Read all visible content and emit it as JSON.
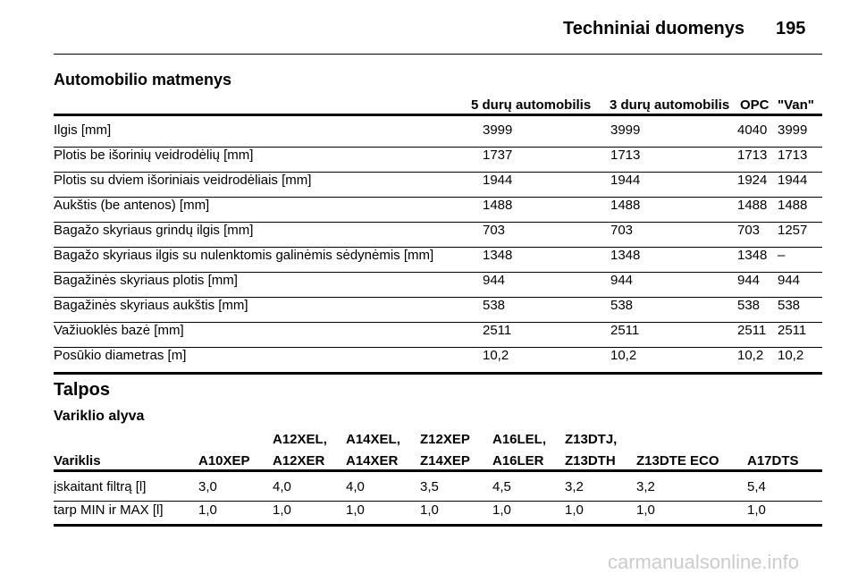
{
  "header": {
    "title": "Techniniai duomenys",
    "page": "195"
  },
  "dimensions": {
    "title": "Automobilio matmenys",
    "columns": [
      "5 durų automobilis",
      "3 durų automobilis",
      "OPC",
      "\"Van\""
    ],
    "rows": [
      [
        "Ilgis [mm]",
        "3999",
        "3999",
        "4040",
        "3999"
      ],
      [
        "Plotis be išorinių veidrodėlių [mm]",
        "1737",
        "1713",
        "1713",
        "1713"
      ],
      [
        "Plotis su dviem išoriniais veidrodėliais [mm]",
        "1944",
        "1944",
        "1924",
        "1944"
      ],
      [
        "Aukštis (be antenos) [mm]",
        "1488",
        "1488",
        "1488",
        "1488"
      ],
      [
        "Bagažo skyriaus grindų ilgis [mm]",
        "703",
        "703",
        "703",
        "1257"
      ],
      [
        "Bagažo skyriaus ilgis su nulenktomis galinėmis sėdynėmis [mm]",
        "1348",
        "1348",
        "1348",
        "–"
      ],
      [
        "Bagažinės skyriaus plotis [mm]",
        "944",
        "944",
        "944",
        "944"
      ],
      [
        "Bagažinės skyriaus aukštis [mm]",
        "538",
        "538",
        "538",
        "538"
      ],
      [
        "Važiuoklės bazė [mm]",
        "2511",
        "2511",
        "2511",
        "2511"
      ],
      [
        "Posūkio diametras [m]",
        "10,2",
        "10,2",
        "10,2",
        "10,2"
      ]
    ]
  },
  "capacities": {
    "title": "Talpos",
    "subtitle": "Variklio alyva",
    "columns": [
      [
        "Variklis"
      ],
      [
        "A10XEP"
      ],
      [
        "A12XEL,",
        "A12XER"
      ],
      [
        "A14XEL,",
        "A14XER"
      ],
      [
        "Z12XEP",
        "Z14XEP"
      ],
      [
        "A16LEL,",
        "A16LER"
      ],
      [
        "Z13DTJ,",
        "Z13DTH"
      ],
      [
        "Z13DTE ECO"
      ],
      [
        "A17DTS"
      ]
    ],
    "rows": [
      [
        "įskaitant filtrą [l]",
        "3,0",
        "4,0",
        "4,0",
        "3,5",
        "4,5",
        "3,2",
        "3,2",
        "5,4"
      ],
      [
        "tarp MIN ir MAX [l]",
        "1,0",
        "1,0",
        "1,0",
        "1,0",
        "1,0",
        "1,0",
        "1,0",
        "1,0"
      ]
    ]
  },
  "watermark": "carmanualsonline.info"
}
